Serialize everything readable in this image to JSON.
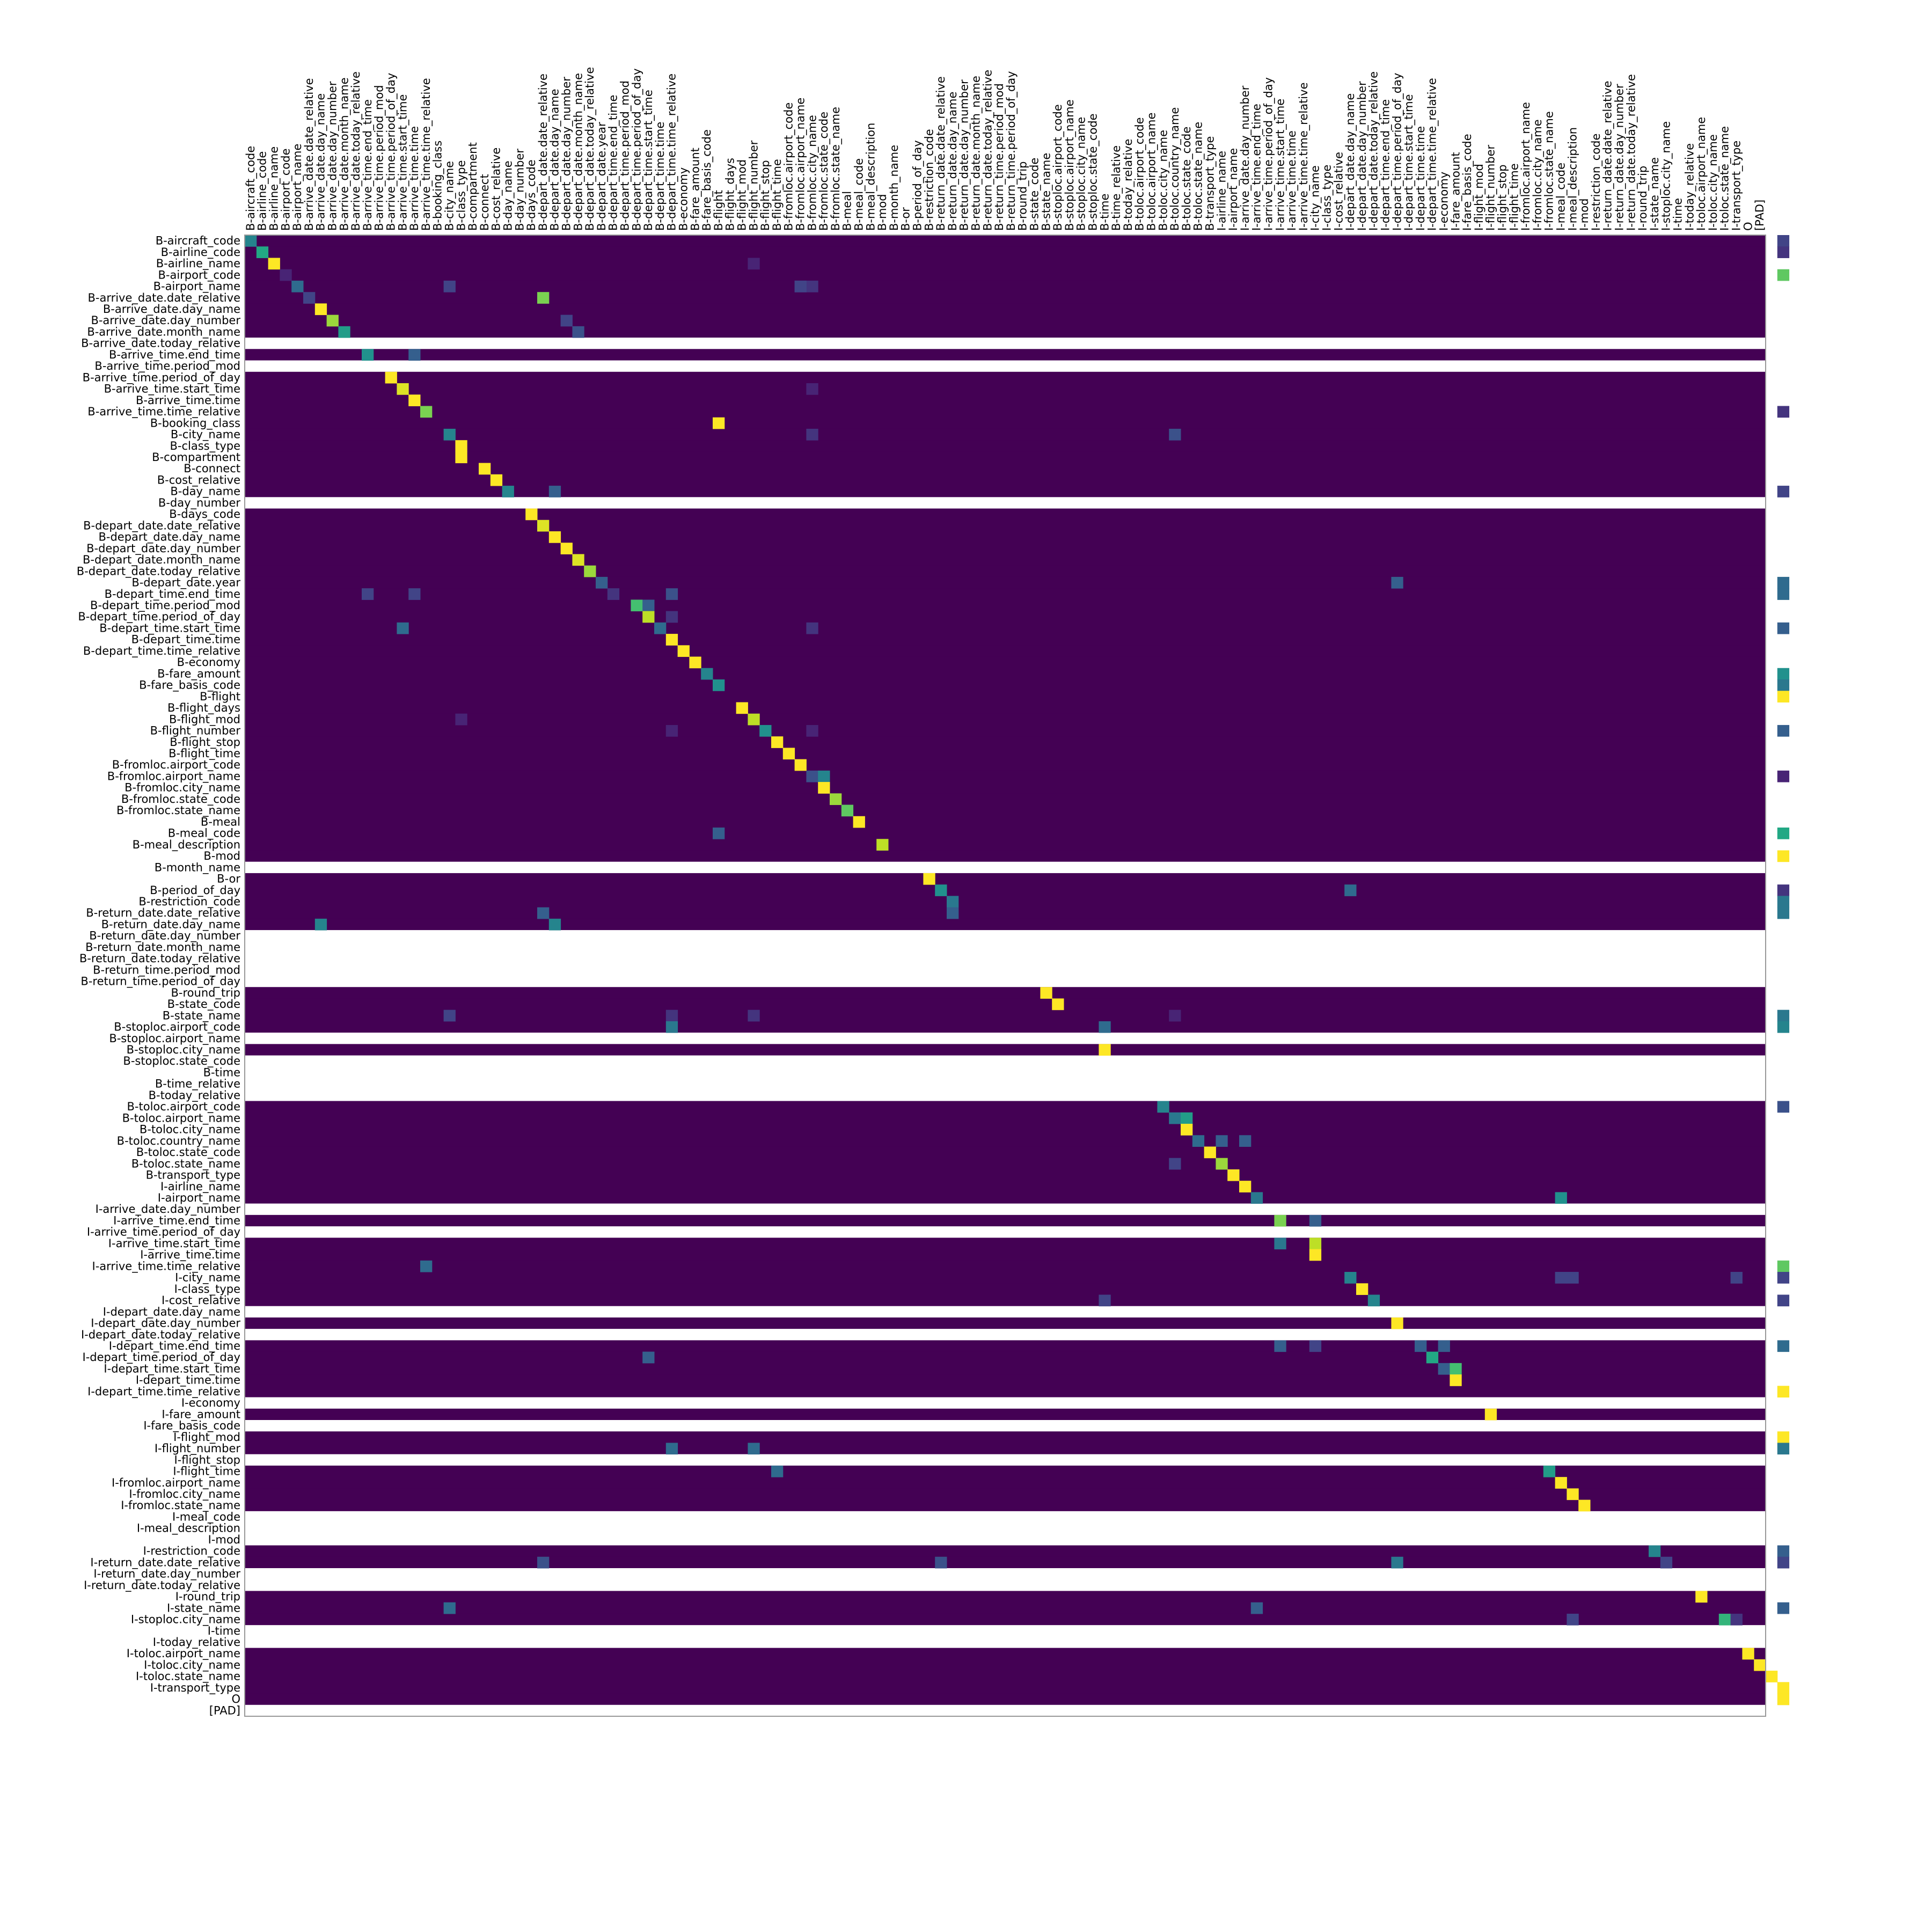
{
  "chart_data": {
    "type": "heatmap",
    "title": "",
    "xlabel": "",
    "ylabel": "",
    "grid": false,
    "legend": "none",
    "colormap": "viridis",
    "empty_row_color": "#ffffff",
    "value_range": [
      0,
      1
    ],
    "x_labels": [
      "B-aircraft_code",
      "B-airline_code",
      "B-airline_name",
      "B-airport_code",
      "B-airport_name",
      "B-arrive_date.date_relative",
      "B-arrive_date.day_name",
      "B-arrive_date.day_number",
      "B-arrive_date.month_name",
      "B-arrive_date.today_relative",
      "B-arrive_time.end_time",
      "B-arrive_time.period_mod",
      "B-arrive_time.period_of_day",
      "B-arrive_time.start_time",
      "B-arrive_time.time",
      "B-arrive_time.time_relative",
      "B-booking_class",
      "B-city_name",
      "B-class_type",
      "B-compartment",
      "B-connect",
      "B-cost_relative",
      "B-day_name",
      "B-day_number",
      "B-days_code",
      "B-depart_date.date_relative",
      "B-depart_date.day_name",
      "B-depart_date.day_number",
      "B-depart_date.month_name",
      "B-depart_date.today_relative",
      "B-depart_date.year",
      "B-depart_time.end_time",
      "B-depart_time.period_mod",
      "B-depart_time.period_of_day",
      "B-depart_time.start_time",
      "B-depart_time.time",
      "B-depart_time.time_relative",
      "B-economy",
      "B-fare_amount",
      "B-fare_basis_code",
      "B-flight",
      "B-flight_days",
      "B-flight_mod",
      "B-flight_number",
      "B-flight_stop",
      "B-flight_time",
      "B-fromloc.airport_code",
      "B-fromloc.airport_name",
      "B-fromloc.city_name",
      "B-fromloc.state_code",
      "B-fromloc.state_name",
      "B-meal",
      "B-meal_code",
      "B-meal_description",
      "B-mod",
      "B-month_name",
      "B-or",
      "B-period_of_day",
      "B-restriction_code",
      "B-return_date.date_relative",
      "B-return_date.day_name",
      "B-return_date.day_number",
      "B-return_date.month_name",
      "B-return_date.today_relative",
      "B-return_time.period_mod",
      "B-return_time.period_of_day",
      "B-round_trip",
      "B-state_code",
      "B-state_name",
      "B-stoploc.airport_code",
      "B-stoploc.airport_name",
      "B-stoploc.city_name",
      "B-stoploc.state_code",
      "B-time",
      "B-time_relative",
      "B-today_relative",
      "B-toloc.airport_code",
      "B-toloc.airport_name",
      "B-toloc.city_name",
      "B-toloc.country_name",
      "B-toloc.state_code",
      "B-toloc.state_name",
      "B-transport_type",
      "I-airline_name",
      "I-airport_name",
      "I-arrive_date.day_number",
      "I-arrive_time.end_time",
      "I-arrive_time.period_of_day",
      "I-arrive_time.start_time",
      "I-arrive_time.time",
      "I-arrive_time.time_relative",
      "I-city_name",
      "I-class_type",
      "I-cost_relative",
      "I-depart_date.day_name",
      "I-depart_date.day_number",
      "I-depart_date.today_relative",
      "I-depart_time.end_time",
      "I-depart_time.period_of_day",
      "I-depart_time.start_time",
      "I-depart_time.time",
      "I-depart_time.time_relative",
      "I-economy",
      "I-fare_amount",
      "I-fare_basis_code",
      "I-flight_mod",
      "I-flight_number",
      "I-flight_stop",
      "I-flight_time",
      "I-fromloc.airport_name",
      "I-fromloc.city_name",
      "I-fromloc.state_name",
      "I-meal_code",
      "I-meal_description",
      "I-mod",
      "I-restriction_code",
      "I-return_date.date_relative",
      "I-return_date.day_number",
      "I-return_date.today_relative",
      "I-round_trip",
      "I-state_name",
      "I-stoploc.city_name",
      "I-time",
      "I-today_relative",
      "I-toloc.airport_name",
      "I-toloc.city_name",
      "I-toloc.state_name",
      "I-transport_type",
      "O",
      "[PAD]"
    ],
    "y_labels": [
      "B-aircraft_code",
      "B-airline_code",
      "B-airline_name",
      "B-airport_code",
      "B-airport_name",
      "B-arrive_date.date_relative",
      "B-arrive_date.day_name",
      "B-arrive_date.day_number",
      "B-arrive_date.month_name",
      "B-arrive_date.today_relative",
      "B-arrive_time.end_time",
      "B-arrive_time.period_mod",
      "B-arrive_time.period_of_day",
      "B-arrive_time.start_time",
      "B-arrive_time.time",
      "B-arrive_time.time_relative",
      "B-booking_class",
      "B-city_name",
      "B-class_type",
      "B-compartment",
      "B-connect",
      "B-cost_relative",
      "B-day_name",
      "B-day_number",
      "B-days_code",
      "B-depart_date.date_relative",
      "B-depart_date.day_name",
      "B-depart_date.day_number",
      "B-depart_date.month_name",
      "B-depart_date.today_relative",
      "B-depart_date.year",
      "B-depart_time.end_time",
      "B-depart_time.period_mod",
      "B-depart_time.period_of_day",
      "B-depart_time.start_time",
      "B-depart_time.time",
      "B-depart_time.time_relative",
      "B-economy",
      "B-fare_amount",
      "B-fare_basis_code",
      "B-flight",
      "B-flight_days",
      "B-flight_mod",
      "B-flight_number",
      "B-flight_stop",
      "B-flight_time",
      "B-fromloc.airport_code",
      "B-fromloc.airport_name",
      "B-fromloc.city_name",
      "B-fromloc.state_code",
      "B-fromloc.state_name",
      "B-meal",
      "B-meal_code",
      "B-meal_description",
      "B-mod",
      "B-month_name",
      "B-or",
      "B-period_of_day",
      "B-restriction_code",
      "B-return_date.date_relative",
      "B-return_date.day_name",
      "B-return_date.day_number",
      "B-return_date.month_name",
      "B-return_date.today_relative",
      "B-return_time.period_mod",
      "B-return_time.period_of_day",
      "B-round_trip",
      "B-state_code",
      "B-state_name",
      "B-stoploc.airport_code",
      "B-stoploc.airport_name",
      "B-stoploc.city_name",
      "B-stoploc.state_code",
      "B-time",
      "B-time_relative",
      "B-today_relative",
      "B-toloc.airport_code",
      "B-toloc.airport_name",
      "B-toloc.city_name",
      "B-toloc.country_name",
      "B-toloc.state_code",
      "B-toloc.state_name",
      "B-transport_type",
      "I-airline_name",
      "I-airport_name",
      "I-arrive_date.day_number",
      "I-arrive_time.end_time",
      "I-arrive_time.period_of_day",
      "I-arrive_time.start_time",
      "I-arrive_time.time",
      "I-arrive_time.time_relative",
      "I-city_name",
      "I-class_type",
      "I-cost_relative",
      "I-depart_date.day_name",
      "I-depart_date.day_number",
      "I-depart_date.today_relative",
      "I-depart_time.end_time",
      "I-depart_time.period_of_day",
      "I-depart_time.start_time",
      "I-depart_time.time",
      "I-depart_time.time_relative",
      "I-economy",
      "I-fare_amount",
      "I-fare_basis_code",
      "I-flight_mod",
      "I-flight_number",
      "I-flight_stop",
      "I-flight_time",
      "I-fromloc.airport_name",
      "I-fromloc.city_name",
      "I-fromloc.state_name",
      "I-meal_code",
      "I-meal_description",
      "I-mod",
      "I-restriction_code",
      "I-return_date.date_relative",
      "I-return_date.day_number",
      "I-return_date.today_relative",
      "I-round_trip",
      "I-state_name",
      "I-stoploc.city_name",
      "I-time",
      "I-today_relative",
      "I-toloc.airport_name",
      "I-toloc.city_name",
      "I-toloc.state_name",
      "I-transport_type",
      "O",
      "[PAD]"
    ],
    "empty_rows": [
      "B-arrive_date.today_relative",
      "B-arrive_time.period_mod",
      "B-day_number",
      "B-month_name",
      "B-return_date.day_number",
      "B-return_date.month_name",
      "B-return_date.today_relative",
      "B-return_time.period_mod",
      "B-return_time.period_of_day",
      "B-stoploc.airport_name",
      "B-stoploc.state_code",
      "B-time",
      "B-time_relative",
      "B-today_relative",
      "I-arrive_date.day_number",
      "I-arrive_time.period_of_day",
      "I-depart_date.day_name",
      "I-depart_date.today_relative",
      "I-economy",
      "I-fare_basis_code",
      "I-flight_stop",
      "I-meal_code",
      "I-meal_description",
      "I-mod",
      "I-return_date.day_number",
      "I-return_date.today_relative",
      "I-time",
      "I-today_relative",
      "[PAD]"
    ],
    "cells": [
      [
        0,
        0,
        0.45
      ],
      [
        0,
        131,
        0.2
      ],
      [
        1,
        1,
        0.6
      ],
      [
        1,
        131,
        0.15
      ],
      [
        2,
        2,
        1.0
      ],
      [
        2,
        43,
        0.1
      ],
      [
        3,
        3,
        0.1
      ],
      [
        3,
        131,
        0.75
      ],
      [
        4,
        4,
        0.35
      ],
      [
        4,
        17,
        0.2
      ],
      [
        4,
        47,
        0.2
      ],
      [
        4,
        48,
        0.15
      ],
      [
        4,
        47,
        0.2
      ],
      [
        5,
        5,
        0.2
      ],
      [
        5,
        25,
        0.8
      ],
      [
        6,
        6,
        1.0
      ],
      [
        7,
        7,
        0.85
      ],
      [
        7,
        27,
        0.2
      ],
      [
        8,
        8,
        0.55
      ],
      [
        8,
        28,
        0.25
      ],
      [
        10,
        10,
        0.5
      ],
      [
        10,
        14,
        0.3
      ],
      [
        12,
        12,
        1.0
      ],
      [
        13,
        13,
        0.95
      ],
      [
        13,
        48,
        0.1
      ],
      [
        14,
        14,
        1.0
      ],
      [
        15,
        15,
        0.8
      ],
      [
        15,
        131,
        0.15
      ],
      [
        16,
        40,
        1.0
      ],
      [
        17,
        17,
        0.45
      ],
      [
        17,
        48,
        0.15
      ],
      [
        17,
        79,
        0.25
      ],
      [
        18,
        18,
        1.0
      ],
      [
        19,
        18,
        1.0
      ],
      [
        20,
        20,
        1.0
      ],
      [
        21,
        21,
        1.0
      ],
      [
        22,
        22,
        0.45
      ],
      [
        22,
        26,
        0.3
      ],
      [
        22,
        131,
        0.2
      ],
      [
        24,
        24,
        1.0
      ],
      [
        25,
        25,
        0.95
      ],
      [
        26,
        26,
        1.0
      ],
      [
        27,
        27,
        1.0
      ],
      [
        28,
        28,
        0.95
      ],
      [
        29,
        29,
        0.85
      ],
      [
        30,
        30,
        0.3
      ],
      [
        30,
        98,
        0.3
      ],
      [
        30,
        131,
        0.35
      ],
      [
        31,
        10,
        0.2
      ],
      [
        31,
        14,
        0.2
      ],
      [
        31,
        31,
        0.15
      ],
      [
        31,
        36,
        0.25
      ],
      [
        31,
        131,
        0.35
      ],
      [
        32,
        33,
        0.7
      ],
      [
        32,
        34,
        0.3
      ],
      [
        33,
        34,
        0.9
      ],
      [
        33,
        36,
        0.15
      ],
      [
        34,
        13,
        0.35
      ],
      [
        34,
        35,
        0.35
      ],
      [
        34,
        48,
        0.15
      ],
      [
        34,
        131,
        0.3
      ],
      [
        35,
        36,
        1.0
      ],
      [
        36,
        37,
        1.0
      ],
      [
        37,
        38,
        1.0
      ],
      [
        38,
        39,
        0.45
      ],
      [
        38,
        131,
        0.5
      ],
      [
        39,
        40,
        0.5
      ],
      [
        39,
        131,
        0.4
      ],
      [
        40,
        131,
        1.0
      ],
      [
        41,
        42,
        1.0
      ],
      [
        42,
        43,
        0.9
      ],
      [
        42,
        18,
        0.1
      ],
      [
        43,
        44,
        0.5
      ],
      [
        43,
        36,
        0.1
      ],
      [
        43,
        48,
        0.1
      ],
      [
        43,
        131,
        0.3
      ],
      [
        44,
        45,
        1.0
      ],
      [
        45,
        46,
        1.0
      ],
      [
        46,
        47,
        1.0
      ],
      [
        47,
        48,
        0.25
      ],
      [
        47,
        49,
        0.45
      ],
      [
        47,
        131,
        0.1
      ],
      [
        48,
        49,
        1.0
      ],
      [
        49,
        50,
        0.85
      ],
      [
        50,
        51,
        0.75
      ],
      [
        51,
        52,
        1.0
      ],
      [
        52,
        40,
        0.3
      ],
      [
        52,
        131,
        0.6
      ],
      [
        53,
        54,
        0.9
      ],
      [
        54,
        131,
        1.0
      ],
      [
        56,
        58,
        1.0
      ],
      [
        57,
        59,
        0.5
      ],
      [
        57,
        94,
        0.35
      ],
      [
        57,
        131,
        0.15
      ],
      [
        58,
        60,
        0.4
      ],
      [
        58,
        131,
        0.4
      ],
      [
        59,
        60,
        0.3
      ],
      [
        59,
        25,
        0.3
      ],
      [
        59,
        131,
        0.4
      ],
      [
        60,
        6,
        0.45
      ],
      [
        60,
        26,
        0.45
      ],
      [
        66,
        68,
        1.0
      ],
      [
        67,
        69,
        1.0
      ],
      [
        68,
        17,
        0.2
      ],
      [
        68,
        36,
        0.15
      ],
      [
        68,
        43,
        0.15
      ],
      [
        68,
        79,
        0.1
      ],
      [
        68,
        131,
        0.4
      ],
      [
        69,
        36,
        0.4
      ],
      [
        69,
        73,
        0.35
      ],
      [
        69,
        131,
        0.45
      ],
      [
        71,
        73,
        1.0
      ],
      [
        76,
        78,
        0.45
      ],
      [
        76,
        131,
        0.25
      ],
      [
        77,
        79,
        0.4
      ],
      [
        77,
        80,
        0.55
      ],
      [
        78,
        80,
        1.0
      ],
      [
        79,
        81,
        0.35
      ],
      [
        79,
        83,
        0.3
      ],
      [
        79,
        85,
        0.3
      ],
      [
        80,
        82,
        1.0
      ],
      [
        81,
        83,
        0.85
      ],
      [
        81,
        79,
        0.2
      ],
      [
        82,
        84,
        1.0
      ],
      [
        83,
        85,
        1.0
      ],
      [
        84,
        86,
        0.4
      ],
      [
        84,
        112,
        0.5
      ],
      [
        86,
        88,
        0.8
      ],
      [
        86,
        91,
        0.3
      ],
      [
        88,
        88,
        0.4
      ],
      [
        88,
        91,
        0.9
      ],
      [
        89,
        91,
        1.0
      ],
      [
        90,
        15,
        0.35
      ],
      [
        90,
        131,
        0.75
      ],
      [
        91,
        94,
        0.45
      ],
      [
        91,
        112,
        0.2
      ],
      [
        91,
        113,
        0.2
      ],
      [
        91,
        127,
        0.2
      ],
      [
        91,
        131,
        0.2
      ],
      [
        92,
        95,
        1.0
      ],
      [
        93,
        96,
        0.45
      ],
      [
        93,
        73,
        0.2
      ],
      [
        93,
        131,
        0.2
      ],
      [
        95,
        98,
        1.0
      ],
      [
        97,
        88,
        0.3
      ],
      [
        97,
        91,
        0.2
      ],
      [
        97,
        100,
        0.3
      ],
      [
        97,
        102,
        0.3
      ],
      [
        97,
        131,
        0.35
      ],
      [
        98,
        34,
        0.3
      ],
      [
        98,
        101,
        0.6
      ],
      [
        99,
        102,
        0.3
      ],
      [
        99,
        103,
        0.7
      ],
      [
        100,
        103,
        1.0
      ],
      [
        101,
        131,
        1.0
      ],
      [
        103,
        106,
        1.0
      ],
      [
        105,
        131,
        1.0
      ],
      [
        106,
        36,
        0.35
      ],
      [
        106,
        43,
        0.35
      ],
      [
        106,
        131,
        0.4
      ],
      [
        108,
        45,
        0.35
      ],
      [
        108,
        111,
        0.55
      ],
      [
        109,
        112,
        1.0
      ],
      [
        110,
        113,
        1.0
      ],
      [
        111,
        114,
        1.0
      ],
      [
        115,
        120,
        0.45
      ],
      [
        115,
        131,
        0.3
      ],
      [
        116,
        25,
        0.25
      ],
      [
        116,
        59,
        0.25
      ],
      [
        116,
        98,
        0.4
      ],
      [
        116,
        121,
        0.2
      ],
      [
        116,
        131,
        0.2
      ],
      [
        119,
        124,
        1.0
      ],
      [
        120,
        17,
        0.35
      ],
      [
        120,
        86,
        0.3
      ],
      [
        120,
        131,
        0.3
      ],
      [
        121,
        113,
        0.2
      ],
      [
        121,
        126,
        0.65
      ],
      [
        121,
        127,
        0.15
      ],
      [
        124,
        128,
        1.0
      ],
      [
        125,
        129,
        1.0
      ],
      [
        126,
        130,
        1.0
      ],
      [
        127,
        131,
        1.0
      ],
      [
        128,
        131,
        1.0
      ]
    ]
  }
}
